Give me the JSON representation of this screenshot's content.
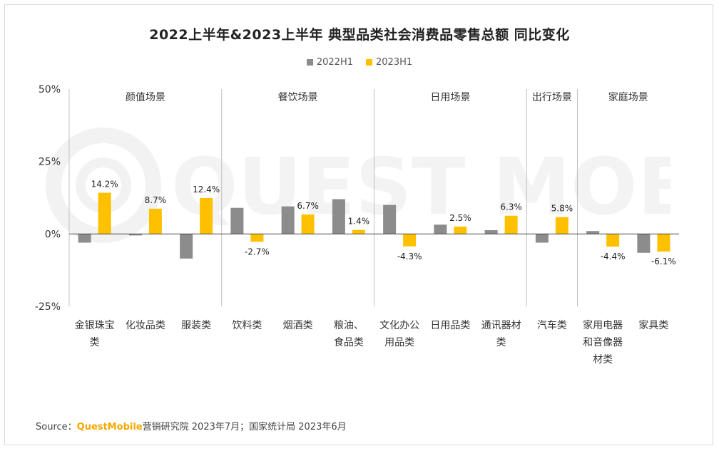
{
  "page": {
    "title": "2022上半年&2023上半年 典型品类社会消费品零售总额 同比变化",
    "source_prefix": "Source：",
    "source_brand": "QuestMobile",
    "source_suffix": "营销研究院 2023年7月；国家统计局 2023年6月",
    "watermark": "QUEST MOBILE"
  },
  "chart_data": {
    "type": "bar",
    "title": "2022上半年&2023上半年 典型品类社会消费品零售总额 同比变化",
    "ylim": [
      -25,
      50
    ],
    "yticks": [
      -25,
      0,
      25,
      50
    ],
    "ytick_labels": [
      "-25%",
      "0%",
      "25%",
      "50%"
    ],
    "grid": false,
    "legend_position": "top-center",
    "categories": [
      "金银珠宝类",
      "化妆品类",
      "服装类",
      "饮料类",
      "烟酒类",
      "粮油、食品类",
      "文化办公用品类",
      "日用品类",
      "通讯器材类",
      "汽车类",
      "家用电器和音像器材类",
      "家具类"
    ],
    "category_lines": [
      [
        "金银珠宝",
        "类"
      ],
      [
        "化妆品类"
      ],
      [
        "服装类"
      ],
      [
        "饮料类"
      ],
      [
        "烟酒类"
      ],
      [
        "粮油、",
        "食品类"
      ],
      [
        "文化办公",
        "用品类"
      ],
      [
        "日用品类"
      ],
      [
        "通讯器材",
        "类"
      ],
      [
        "汽车类"
      ],
      [
        "家用电器",
        "和音像器",
        "材类"
      ],
      [
        "家具类"
      ]
    ],
    "groups": [
      {
        "label": "颜值场景",
        "start": 0,
        "end": 2
      },
      {
        "label": "餐饮场景",
        "start": 3,
        "end": 5
      },
      {
        "label": "日用场景",
        "start": 6,
        "end": 8
      },
      {
        "label": "出行场景",
        "start": 9,
        "end": 9
      },
      {
        "label": "家庭场景",
        "start": 10,
        "end": 11
      }
    ],
    "series": [
      {
        "name": "2022H1",
        "color": "#8c8c8c",
        "values": [
          -3,
          -0.5,
          -8.5,
          9,
          9.5,
          12,
          10,
          3.2,
          1.3,
          -3,
          1,
          -6.5
        ],
        "labels": []
      },
      {
        "name": "2023H1",
        "color": "#ffc000",
        "values": [
          14.2,
          8.7,
          12.4,
          -2.7,
          6.7,
          1.4,
          -4.3,
          2.5,
          6.3,
          5.8,
          -4.4,
          -6.1
        ],
        "labels": [
          "14.2%",
          "8.7%",
          "12.4%",
          "-2.7%",
          "6.7%",
          "1.4%",
          "-4.3%",
          "2.5%",
          "6.3%",
          "5.8%",
          "-4.4%",
          "-6.1%"
        ]
      }
    ]
  }
}
